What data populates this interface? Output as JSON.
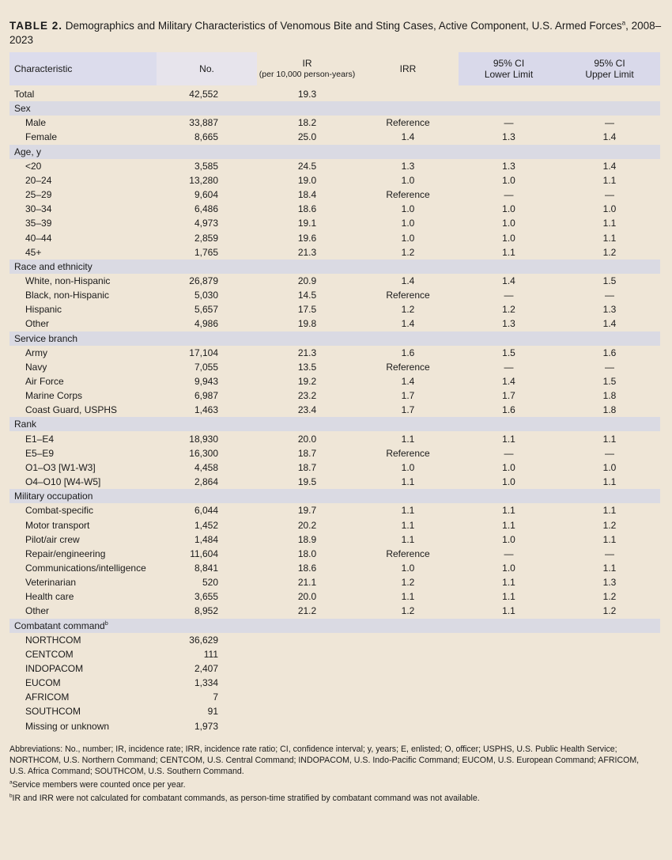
{
  "title": {
    "label": "TABLE 2.",
    "text": "Demographics and Military Characteristics of Venomous Bite and Sting Cases, Active Component, U.S. Armed Forces",
    "sup": "a",
    "suffix": ", 2008–2023"
  },
  "table": {
    "columns": [
      [
        "Characteristic"
      ],
      [
        "No."
      ],
      [
        "IR",
        "(per 10,000 person-years)"
      ],
      [
        "IRR"
      ],
      [
        "95% CI",
        "Lower Limit"
      ],
      [
        "95% CI",
        "Upper Limit"
      ]
    ],
    "total": [
      "Total",
      "42,552",
      "19.3"
    ],
    "sections": [
      {
        "label": "Sex",
        "rows": [
          [
            "Male",
            "33,887",
            "18.2",
            "Reference",
            "—",
            "—"
          ],
          [
            "Female",
            "8,665",
            "25.0",
            "1.4",
            "1.3",
            "1.4"
          ]
        ]
      },
      {
        "label": "Age, y",
        "rows": [
          [
            "<20",
            "3,585",
            "24.5",
            "1.3",
            "1.3",
            "1.4"
          ],
          [
            "20–24",
            "13,280",
            "19.0",
            "1.0",
            "1.0",
            "1.1"
          ],
          [
            "25–29",
            "9,604",
            "18.4",
            "Reference",
            "—",
            "—"
          ],
          [
            "30–34",
            "6,486",
            "18.6",
            "1.0",
            "1.0",
            "1.0"
          ],
          [
            "35–39",
            "4,973",
            "19.1",
            "1.0",
            "1.0",
            "1.1"
          ],
          [
            "40–44",
            "2,859",
            "19.6",
            "1.0",
            "1.0",
            "1.1"
          ],
          [
            "45+",
            "1,765",
            "21.3",
            "1.2",
            "1.1",
            "1.2"
          ]
        ]
      },
      {
        "label": "Race and ethnicity",
        "rows": [
          [
            "White, non-Hispanic",
            "26,879",
            "20.9",
            "1.4",
            "1.4",
            "1.5"
          ],
          [
            "Black, non-Hispanic",
            "5,030",
            "14.5",
            "Reference",
            "—",
            "—"
          ],
          [
            "Hispanic",
            "5,657",
            "17.5",
            "1.2",
            "1.2",
            "1.3"
          ],
          [
            "Other",
            "4,986",
            "19.8",
            "1.4",
            "1.3",
            "1.4"
          ]
        ]
      },
      {
        "label": "Service branch",
        "rows": [
          [
            "Army",
            "17,104",
            "21.3",
            "1.6",
            "1.5",
            "1.6"
          ],
          [
            "Navy",
            "7,055",
            "13.5",
            "Reference",
            "—",
            "—"
          ],
          [
            "Air Force",
            "9,943",
            "19.2",
            "1.4",
            "1.4",
            "1.5"
          ],
          [
            "Marine Corps",
            "6,987",
            "23.2",
            "1.7",
            "1.7",
            "1.8"
          ],
          [
            "Coast Guard, USPHS",
            "1,463",
            "23.4",
            "1.7",
            "1.6",
            "1.8"
          ]
        ]
      },
      {
        "label": "Rank",
        "rows": [
          [
            "E1–E4",
            "18,930",
            "20.0",
            "1.1",
            "1.1",
            "1.1"
          ],
          [
            "E5–E9",
            "16,300",
            "18.7",
            "Reference",
            "—",
            "—"
          ],
          [
            "O1–O3 [W1-W3]",
            "4,458",
            "18.7",
            "1.0",
            "1.0",
            "1.0"
          ],
          [
            "O4–O10 [W4-W5]",
            "2,864",
            "19.5",
            "1.1",
            "1.0",
            "1.1"
          ]
        ]
      },
      {
        "label": "Military occupation",
        "rows": [
          [
            "Combat-specific",
            "6,044",
            "19.7",
            "1.1",
            "1.1",
            "1.1"
          ],
          [
            "Motor transport",
            "1,452",
            "20.2",
            "1.1",
            "1.1",
            "1.2"
          ],
          [
            "Pilot/air crew",
            "1,484",
            "18.9",
            "1.1",
            "1.0",
            "1.1"
          ],
          [
            "Repair/engineering",
            "11,604",
            "18.0",
            "Reference",
            "—",
            "—"
          ],
          [
            "Communications/intelligence",
            "8,841",
            "18.6",
            "1.0",
            "1.0",
            "1.1"
          ],
          [
            "Veterinarian",
            "520",
            "21.1",
            "1.2",
            "1.1",
            "1.3"
          ],
          [
            "Health care",
            "3,655",
            "20.0",
            "1.1",
            "1.1",
            "1.2"
          ],
          [
            "Other",
            "8,952",
            "21.2",
            "1.2",
            "1.1",
            "1.2"
          ]
        ]
      },
      {
        "label": "Combatant command",
        "sup": "b",
        "rows": [
          [
            "NORTHCOM",
            "36,629"
          ],
          [
            "CENTCOM",
            "111"
          ],
          [
            "INDOPACOM",
            "2,407"
          ],
          [
            "EUCOM",
            "1,334"
          ],
          [
            "AFRICOM",
            "7"
          ],
          [
            "SOUTHCOM",
            "91"
          ],
          [
            "Missing or unknown",
            "1,973"
          ]
        ]
      }
    ]
  },
  "footnotes": {
    "abbreviations": "Abbreviations: No., number; IR, incidence rate; IRR, incidence rate ratio; CI, confidence interval; y, years; E, enlisted; O, officer; USPHS, U.S. Public Health Service; NORTHCOM, U.S. Northern Command; CENTCOM, U.S. Central Command; INDOPACOM, U.S. Indo-Pacific Command; EUCOM, U.S. European Command; AFRICOM, U.S. Africa Command; SOUTHCOM, U.S. Southern Command.",
    "notes": [
      {
        "mark": "a",
        "text": "Service members were counted once per year."
      },
      {
        "mark": "b",
        "text": "IR and IRR were not calculated for combatant commands, as person-time stratified by combatant command was not available."
      }
    ]
  }
}
